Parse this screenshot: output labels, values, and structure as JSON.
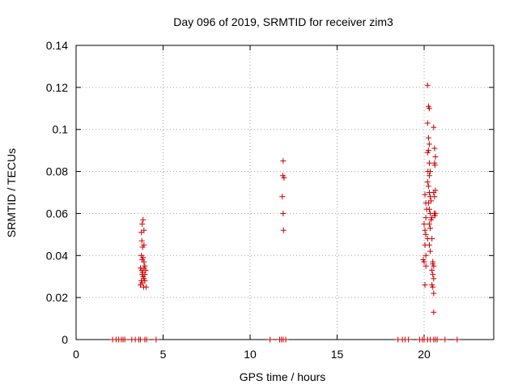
{
  "chart_data": {
    "type": "scatter",
    "title": "Day 096 of 2019, SRMTID for receiver zim3",
    "xlabel": "GPS time / hours",
    "ylabel": "SRMTID / TECUs",
    "xlim": [
      0,
      24
    ],
    "ylim": [
      0,
      0.14
    ],
    "xticks": [
      0,
      5,
      10,
      15,
      20
    ],
    "xtick_labels": [
      "0",
      "5",
      "10",
      "15",
      "20"
    ],
    "yticks": [
      0,
      0.02,
      0.04,
      0.06,
      0.08,
      0.1,
      0.12,
      0.14
    ],
    "ytick_labels": [
      "0",
      "0.02",
      "0.04",
      "0.06",
      "0.08",
      "0.1",
      "0.12",
      "0.14"
    ],
    "grid": true,
    "marker": "+",
    "color": "#cc0000",
    "series": [
      {
        "name": "SRMTID",
        "points": [
          [
            2.1,
            0
          ],
          [
            2.3,
            0
          ],
          [
            2.45,
            0
          ],
          [
            2.6,
            0
          ],
          [
            2.7,
            0
          ],
          [
            2.8,
            0
          ],
          [
            3.2,
            0
          ],
          [
            3.4,
            0
          ],
          [
            3.6,
            0
          ],
          [
            3.7,
            0
          ],
          [
            3.95,
            0
          ],
          [
            4.05,
            0
          ],
          [
            4.6,
            0
          ],
          [
            11.15,
            0
          ],
          [
            11.7,
            0
          ],
          [
            11.8,
            0
          ],
          [
            11.9,
            0
          ],
          [
            12.05,
            0
          ],
          [
            18.5,
            0
          ],
          [
            18.75,
            0
          ],
          [
            18.9,
            0
          ],
          [
            19.1,
            0
          ],
          [
            19.75,
            0
          ],
          [
            19.9,
            0
          ],
          [
            20.0,
            0
          ],
          [
            20.2,
            0
          ],
          [
            20.35,
            0
          ],
          [
            20.55,
            0
          ],
          [
            20.65,
            0
          ],
          [
            20.75,
            0
          ],
          [
            21.2,
            0
          ],
          [
            21.9,
            0
          ],
          [
            3.8,
            0.055
          ],
          [
            3.85,
            0.057
          ],
          [
            3.9,
            0.052
          ],
          [
            3.75,
            0.051
          ],
          [
            3.78,
            0.047
          ],
          [
            3.82,
            0.044
          ],
          [
            3.9,
            0.045
          ],
          [
            3.75,
            0.04
          ],
          [
            3.8,
            0.038
          ],
          [
            3.85,
            0.039
          ],
          [
            3.9,
            0.037
          ],
          [
            3.95,
            0.035
          ],
          [
            3.7,
            0.034
          ],
          [
            3.78,
            0.033
          ],
          [
            3.82,
            0.032
          ],
          [
            3.9,
            0.034
          ],
          [
            4.0,
            0.033
          ],
          [
            3.85,
            0.03
          ],
          [
            3.9,
            0.029
          ],
          [
            3.75,
            0.028
          ],
          [
            3.8,
            0.027
          ],
          [
            3.95,
            0.028
          ],
          [
            3.7,
            0.026
          ],
          [
            3.88,
            0.025
          ],
          [
            4.02,
            0.025
          ],
          [
            3.8,
            0.031
          ],
          [
            3.95,
            0.031
          ],
          [
            11.9,
            0.085
          ],
          [
            11.88,
            0.078
          ],
          [
            11.95,
            0.077
          ],
          [
            11.85,
            0.068
          ],
          [
            11.9,
            0.06
          ],
          [
            11.92,
            0.052
          ],
          [
            20.2,
            0.121
          ],
          [
            20.25,
            0.111
          ],
          [
            20.3,
            0.11
          ],
          [
            20.2,
            0.103
          ],
          [
            20.25,
            0.096
          ],
          [
            20.3,
            0.093
          ],
          [
            20.2,
            0.089
          ],
          [
            20.25,
            0.09
          ],
          [
            20.3,
            0.084
          ],
          [
            20.22,
            0.08
          ],
          [
            20.3,
            0.078
          ],
          [
            20.35,
            0.08
          ],
          [
            20.2,
            0.075
          ],
          [
            20.25,
            0.073
          ],
          [
            20.3,
            0.07
          ],
          [
            20.35,
            0.068
          ],
          [
            20.25,
            0.065
          ],
          [
            20.3,
            0.062
          ],
          [
            20.35,
            0.06
          ],
          [
            20.4,
            0.057
          ],
          [
            20.3,
            0.055
          ],
          [
            20.35,
            0.053
          ],
          [
            20.0,
            0.055
          ],
          [
            20.05,
            0.052
          ],
          [
            20.1,
            0.05
          ],
          [
            20.2,
            0.048
          ],
          [
            20.3,
            0.045
          ],
          [
            20.35,
            0.042
          ],
          [
            20.05,
            0.045
          ],
          [
            20.1,
            0.04
          ],
          [
            19.95,
            0.038
          ],
          [
            20.0,
            0.037
          ],
          [
            20.1,
            0.035
          ],
          [
            20.05,
            0.026
          ],
          [
            20.55,
            0.101
          ],
          [
            20.6,
            0.091
          ],
          [
            20.65,
            0.087
          ],
          [
            20.6,
            0.084
          ],
          [
            20.62,
            0.083
          ],
          [
            20.55,
            0.07
          ],
          [
            20.6,
            0.068
          ],
          [
            20.65,
            0.071
          ],
          [
            20.58,
            0.06
          ],
          [
            20.62,
            0.059
          ],
          [
            20.65,
            0.06
          ],
          [
            20.5,
            0.037
          ],
          [
            20.55,
            0.035
          ],
          [
            20.45,
            0.033
          ],
          [
            20.5,
            0.031
          ],
          [
            20.55,
            0.029
          ],
          [
            20.45,
            0.026
          ],
          [
            20.5,
            0.025
          ],
          [
            20.55,
            0.022
          ],
          [
            20.55,
            0.013
          ],
          [
            20.1,
            0.065
          ],
          [
            20.15,
            0.062
          ],
          [
            20.4,
            0.066
          ],
          [
            20.45,
            0.058
          ],
          [
            20.1,
            0.058
          ],
          [
            20.05,
            0.069
          ],
          [
            20.45,
            0.048
          ],
          [
            20.5,
            0.036
          ]
        ]
      }
    ]
  }
}
